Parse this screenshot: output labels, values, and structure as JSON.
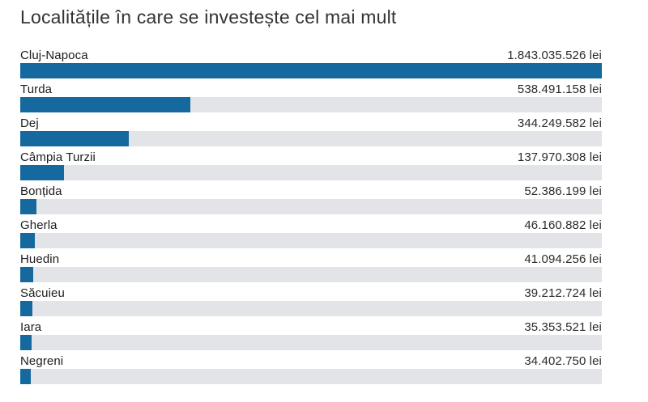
{
  "page": {
    "background": "#ffffff"
  },
  "chart_data": {
    "type": "bar",
    "orientation": "horizontal",
    "title": "Localitățile în care se investește cel mai mult",
    "unit": "lei",
    "bar_color": "#16699f",
    "track_color": "#e2e4e7",
    "grid": false,
    "legend": "none",
    "xlim": [
      0,
      1843035526
    ],
    "rows": [
      {
        "label": "Cluj-Napoca",
        "value": 1843035526,
        "value_label": "1.843.035.526 lei"
      },
      {
        "label": "Turda",
        "value": 538491158,
        "value_label": "538.491.158 lei"
      },
      {
        "label": "Dej",
        "value": 344249582,
        "value_label": "344.249.582 lei"
      },
      {
        "label": "Câmpia Turzii",
        "value": 137970308,
        "value_label": "137.970.308 lei"
      },
      {
        "label": "Bonțida",
        "value": 52386199,
        "value_label": "52.386.199 lei"
      },
      {
        "label": "Gherla",
        "value": 46160882,
        "value_label": "46.160.882 lei"
      },
      {
        "label": "Huedin",
        "value": 41094256,
        "value_label": "41.094.256 lei"
      },
      {
        "label": "Săcuieu",
        "value": 39212724,
        "value_label": "39.212.724 lei"
      },
      {
        "label": "Iara",
        "value": 35353521,
        "value_label": "35.353.521 lei"
      },
      {
        "label": "Negreni",
        "value": 34402750,
        "value_label": "34.402.750 lei"
      }
    ]
  }
}
